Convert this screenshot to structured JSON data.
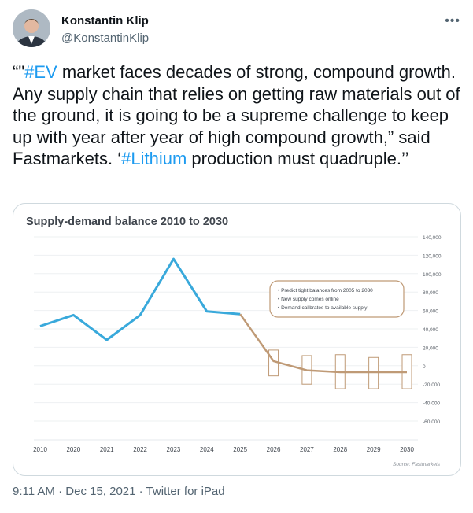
{
  "author": {
    "name": "Konstantin Klip",
    "handle": "@KonstantinKlip"
  },
  "more_label": "•••",
  "tweet": {
    "open_quote": "“\"",
    "hashtag1": "#EV",
    "text1": " market faces decades of strong, compound growth. Any supply chain that relies on getting raw materials out of the ground, it is going to be a supreme challenge to keep up with year after year of high compound growth,” said Fastmarkets. ‘",
    "hashtag2": "#Lithium",
    "text2": " production must quadruple.’’"
  },
  "chart_data": {
    "type": "line",
    "title": "Supply-demand balance 2010 to 2030",
    "categories": [
      "2010",
      "2020",
      "2021",
      "2022",
      "2023",
      "2024",
      "2025",
      "2026",
      "2027",
      "2028",
      "2029",
      "2030"
    ],
    "series": [
      {
        "values": [
          43000,
          55000,
          28000,
          55000,
          116000,
          59000,
          56000,
          null,
          null,
          null,
          null,
          null
        ],
        "color": "#39a9db"
      },
      {
        "values": [
          null,
          null,
          null,
          null,
          null,
          null,
          56000,
          5000,
          -5000,
          -7000,
          -7000,
          -7000
        ],
        "color": "#bf9a76",
        "ranges": [
          [
            null,
            null
          ],
          [
            null,
            null
          ],
          [
            null,
            null
          ],
          [
            null,
            null
          ],
          [
            null,
            null
          ],
          [
            null,
            null
          ],
          [
            null,
            null
          ],
          [
            -11000,
            17000
          ],
          [
            -20000,
            11000
          ],
          [
            -25000,
            12000
          ],
          [
            -25000,
            9000
          ],
          [
            -25000,
            12000
          ]
        ]
      }
    ],
    "yticks": [
      "140,000",
      "120,000",
      "100,000",
      "80,000",
      "60,000",
      "40,000",
      "20,000",
      "0",
      "-20,000",
      "-40,000",
      "-60,000"
    ],
    "ylim": [
      -80000,
      140000
    ],
    "annotation": [
      "Predict tight balances from 2005 to 2030",
      "New supply comes online",
      "Demand calibrates to available supply"
    ],
    "source": "Source: Fastmarkets",
    "grid": true
  },
  "footer": {
    "time": "9:11 AM",
    "date": "Dec 15, 2021",
    "sep": " · ",
    "client": "Twitter for iPad"
  },
  "colors": {
    "hashtag": "#1d9bf0",
    "supply_line": "#39a9db",
    "forecast": "#bf9a76"
  }
}
